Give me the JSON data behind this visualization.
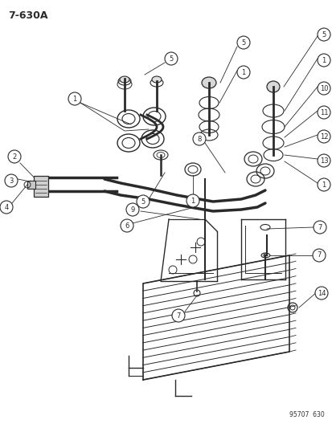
{
  "title": "7-630A",
  "watermark": "95707  630",
  "bg_color": "#ffffff",
  "lc": "#2a2a2a",
  "fig_w": 4.14,
  "fig_h": 5.33,
  "dpi": 100
}
